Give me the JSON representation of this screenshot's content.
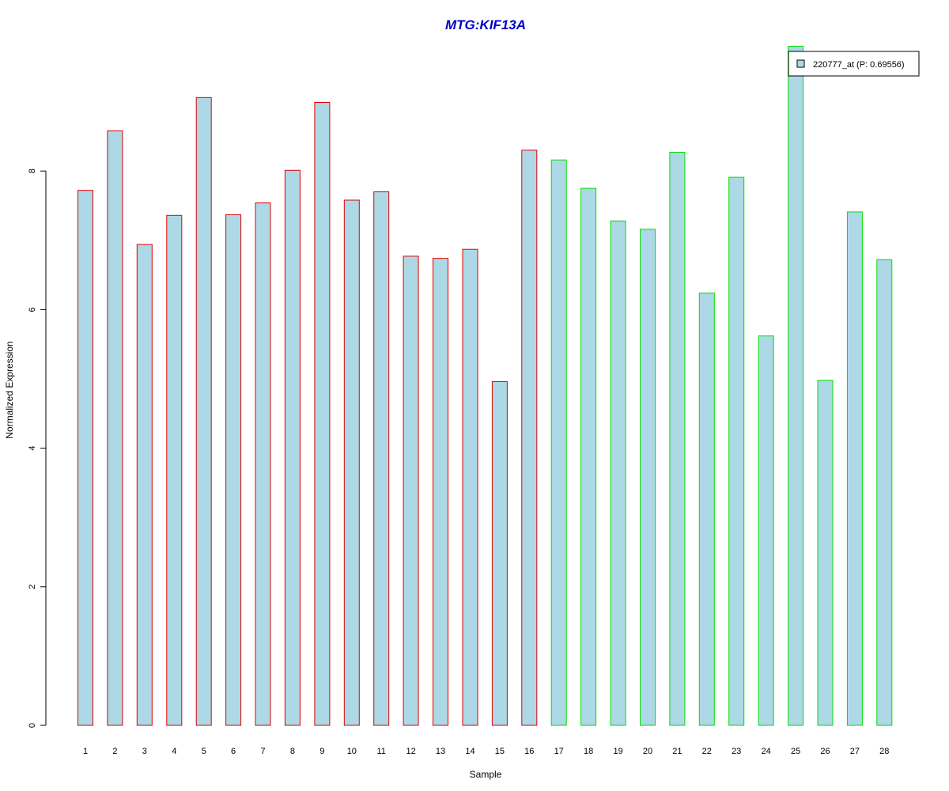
{
  "chart_data": {
    "type": "bar",
    "title": "MTG:KIF13A",
    "xlabel": "Sample",
    "ylabel": "Normalized Expression",
    "categories": [
      "1",
      "2",
      "3",
      "4",
      "5",
      "6",
      "7",
      "8",
      "9",
      "10",
      "11",
      "12",
      "13",
      "14",
      "15",
      "16",
      "17",
      "18",
      "19",
      "20",
      "21",
      "22",
      "23",
      "24",
      "25",
      "26",
      "27",
      "28"
    ],
    "values": [
      7.72,
      8.58,
      6.94,
      7.36,
      9.06,
      7.37,
      7.54,
      8.01,
      8.99,
      7.58,
      7.7,
      6.77,
      6.74,
      6.87,
      4.96,
      8.3,
      8.16,
      7.75,
      7.28,
      7.16,
      8.27,
      6.24,
      7.91,
      5.62,
      9.8,
      4.98,
      7.41,
      6.72
    ],
    "group_colors": [
      "#e00000",
      "#e00000",
      "#e00000",
      "#e00000",
      "#e00000",
      "#e00000",
      "#e00000",
      "#e00000",
      "#e00000",
      "#e00000",
      "#e00000",
      "#e00000",
      "#e00000",
      "#e00000",
      "#e00000",
      "#e00000",
      "#00e000",
      "#00e000",
      "#00e000",
      "#00e000",
      "#00e000",
      "#00e000",
      "#00e000",
      "#00e000",
      "#00e000",
      "#00e000",
      "#00e000",
      "#00e000"
    ],
    "bar_fill": "#add8e6",
    "title_color": "#0000cc",
    "yticks": [
      0,
      2,
      4,
      6,
      8
    ],
    "ylim": [
      0,
      9.8
    ],
    "grid": false,
    "legend": {
      "position": "top-right",
      "label": "220777_at (P: 0.69556)"
    }
  }
}
